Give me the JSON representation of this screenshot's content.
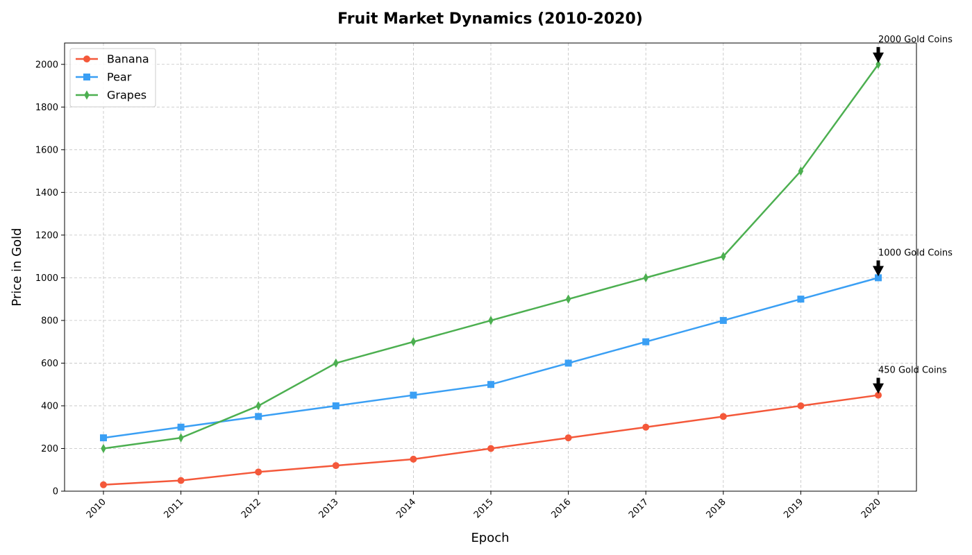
{
  "chart_data": {
    "type": "line",
    "title": "Fruit Market Dynamics (2010-2020)",
    "xlabel": "Epoch",
    "ylabel": "Price in Gold",
    "categories": [
      "2010",
      "2011",
      "2012",
      "2013",
      "2014",
      "2015",
      "2016",
      "2017",
      "2018",
      "2019",
      "2020"
    ],
    "ylim": [
      0,
      2100
    ],
    "yticks": [
      0,
      200,
      400,
      600,
      800,
      1000,
      1200,
      1400,
      1600,
      1800,
      2000
    ],
    "grid": true,
    "legend_position": "top-left",
    "series": [
      {
        "name": "Banana",
        "color": "#f4583a",
        "marker": "circle",
        "values": [
          30,
          50,
          90,
          120,
          150,
          200,
          250,
          300,
          350,
          400,
          450
        ]
      },
      {
        "name": "Pear",
        "color": "#3a9ff4",
        "marker": "square",
        "values": [
          250,
          300,
          350,
          400,
          450,
          500,
          600,
          700,
          800,
          900,
          1000
        ]
      },
      {
        "name": "Grapes",
        "color": "#4caf50",
        "marker": "diamond",
        "values": [
          200,
          250,
          400,
          600,
          700,
          800,
          900,
          1000,
          1100,
          1500,
          2000
        ]
      }
    ],
    "annotations": [
      {
        "text": "2000 Gold Coins",
        "x": "2020",
        "y": 2000
      },
      {
        "text": "1000 Gold Coins",
        "x": "2020",
        "y": 1000
      },
      {
        "text": "450 Gold Coins",
        "x": "2020",
        "y": 450
      }
    ]
  }
}
